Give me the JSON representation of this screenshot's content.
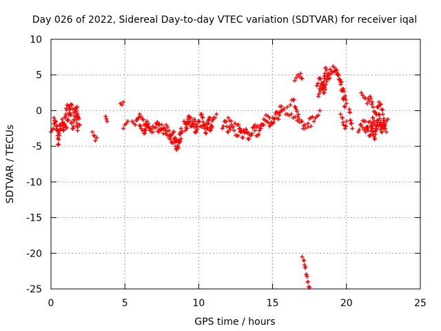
{
  "chart_data": {
    "type": "scatter",
    "title": "Day 026 of 2022, Sidereal Day-to-day VTEC variation (SDTVAR) for receiver iqal",
    "xlabel": "GPS time / hours",
    "ylabel": "SDTVAR / TECUs",
    "xlim": [
      0,
      25
    ],
    "ylim": [
      -25,
      10
    ],
    "xticks": [
      0,
      5,
      10,
      15,
      20,
      25
    ],
    "yticks": [
      -25,
      -20,
      -15,
      -10,
      -5,
      0,
      5,
      10
    ],
    "grid": true,
    "marker": "+",
    "series": [
      {
        "name": "SDTVAR",
        "color": "#ff0000",
        "segments": [
          {
            "x": [
              0.0,
              0.15,
              0.3,
              0.45,
              0.5,
              0.6,
              0.75,
              0.85,
              1.0,
              1.1,
              1.25,
              1.4,
              1.5,
              1.6,
              1.75,
              1.85,
              1.95
            ],
            "y": [
              -3.0,
              -2.5,
              -1.5,
              -3.5,
              -4.8,
              -2.0,
              -1.2,
              -2.8,
              -0.5,
              0.8,
              0.3,
              -1.8,
              -2.5,
              -0.8,
              0.5,
              -1.0,
              -2.0
            ]
          },
          {
            "x": [
              0.2,
              0.35,
              0.55,
              0.7,
              0.9,
              1.05,
              1.2,
              1.35,
              1.55,
              1.7,
              1.8
            ],
            "y": [
              -1.0,
              -2.2,
              -3.2,
              -2.6,
              -1.8,
              -2.4,
              -0.6,
              0.9,
              -0.3,
              0.2,
              -2.8
            ]
          },
          {
            "x": [
              2.8,
              2.9,
              3.0,
              3.1
            ],
            "y": [
              -3.0,
              -3.5,
              -4.2,
              -3.8
            ]
          },
          {
            "x": [
              3.7,
              3.8
            ],
            "y": [
              -0.8,
              -1.5
            ]
          },
          {
            "x": [
              4.7,
              4.8,
              4.9
            ],
            "y": [
              1.0,
              0.8,
              1.2
            ]
          },
          {
            "x": [
              4.9,
              5.0,
              5.1,
              5.2
            ],
            "y": [
              -2.5,
              -2.0,
              -1.8,
              -1.5
            ]
          },
          {
            "x": [
              5.5,
              5.7,
              5.9,
              6.1,
              6.3,
              6.5,
              6.7,
              6.9,
              7.1,
              7.3,
              7.5,
              7.7,
              7.9,
              8.1,
              8.3,
              8.5,
              8.7,
              8.9
            ],
            "y": [
              -1.5,
              -2.0,
              -1.0,
              -2.5,
              -3.2,
              -1.5,
              -2.8,
              -2.2,
              -1.8,
              -3.0,
              -2.0,
              -2.6,
              -3.5,
              -4.0,
              -3.0,
              -5.5,
              -4.5,
              -3.0
            ]
          },
          {
            "x": [
              6.0,
              6.2,
              6.4,
              6.6,
              6.8,
              7.0,
              7.2,
              7.4,
              7.6,
              7.8,
              8.0,
              8.2,
              8.4,
              8.6,
              8.8
            ],
            "y": [
              -0.5,
              -1.2,
              -2.8,
              -2.2,
              -3.0,
              -2.4,
              -1.6,
              -2.6,
              -3.2,
              -2.0,
              -2.8,
              -4.5,
              -3.8,
              -5.0,
              -2.5
            ]
          },
          {
            "x": [
              9.0,
              9.2,
              9.4,
              9.6,
              9.8,
              10.0,
              10.2,
              10.4,
              10.6,
              10.8,
              11.0,
              11.2
            ],
            "y": [
              -1.5,
              -2.5,
              -1.0,
              -2.0,
              -3.0,
              -1.5,
              -0.5,
              -2.5,
              -1.8,
              -2.8,
              -1.0,
              -0.5
            ]
          },
          {
            "x": [
              9.1,
              9.3,
              9.5,
              9.7,
              9.9,
              10.1,
              10.3,
              10.5,
              10.7,
              10.9
            ],
            "y": [
              -2.8,
              -0.8,
              -2.2,
              -1.2,
              -2.6,
              -2.2,
              -1.6,
              -3.2,
              -1.0,
              -2.2
            ]
          },
          {
            "x": [
              11.6,
              11.8,
              12.0,
              12.2,
              12.4,
              12.6,
              12.8,
              13.0,
              13.2,
              13.4,
              13.6,
              13.8,
              14.0,
              14.2,
              14.4,
              14.6,
              14.8,
              15.0,
              15.2,
              15.4,
              15.6
            ],
            "y": [
              -2.5,
              -1.5,
              -3.0,
              -2.0,
              -2.8,
              -3.5,
              -2.5,
              -3.8,
              -3.0,
              -4.0,
              -3.2,
              -2.8,
              -3.5,
              -2.5,
              -2.0,
              -1.5,
              -2.2,
              -1.0,
              -0.5,
              -1.2,
              0.0
            ]
          },
          {
            "x": [
              12.0,
              12.3,
              12.6,
              12.9,
              13.2,
              13.5,
              13.8,
              14.1,
              14.4,
              14.7,
              15.0,
              15.3,
              15.6,
              15.9
            ],
            "y": [
              -1.0,
              -2.2,
              -2.0,
              -3.0,
              -2.6,
              -3.4,
              -2.0,
              -2.8,
              -1.2,
              -0.8,
              -1.8,
              -0.2,
              0.6,
              -0.5
            ]
          },
          {
            "x": [
              16.0,
              16.2,
              16.4,
              16.6,
              16.8,
              17.0,
              17.2,
              17.4,
              17.6,
              17.8,
              18.0,
              18.2
            ],
            "y": [
              0.5,
              0.8,
              1.5,
              0.2,
              -1.2,
              -1.5,
              -2.0,
              -1.8,
              -1.0,
              -1.5,
              -0.8,
              0.0
            ]
          },
          {
            "x": [
              16.0,
              16.4,
              16.8,
              17.2,
              17.6
            ],
            "y": [
              -0.5,
              -1.0,
              -1.6,
              -2.5,
              -2.2
            ]
          },
          {
            "x": [
              16.5,
              16.6,
              16.7,
              16.8,
              16.9,
              17.0
            ],
            "y": [
              4.2,
              4.6,
              5.0,
              4.8,
              5.2,
              4.5
            ]
          },
          {
            "x": [
              17.0,
              17.1,
              17.2,
              17.3,
              17.4,
              17.5
            ],
            "y": [
              -20.5,
              -21.0,
              -22.0,
              -23.0,
              -24.0,
              -24.8
            ]
          },
          {
            "x": [
              18.0,
              18.2,
              18.4,
              18.6,
              18.8,
              19.0,
              19.2,
              19.4,
              19.6,
              19.8,
              20.0
            ],
            "y": [
              3.5,
              4.5,
              3.0,
              6.0,
              4.5,
              5.5,
              6.0,
              5.0,
              4.0,
              3.0,
              1.0
            ]
          },
          {
            "x": [
              18.1,
              18.3,
              18.5,
              18.7,
              18.9,
              19.1,
              19.3,
              19.5,
              19.7,
              19.9
            ],
            "y": [
              2.0,
              3.8,
              2.5,
              4.8,
              5.8,
              6.2,
              5.6,
              4.4,
              2.8,
              0.5
            ]
          },
          {
            "x": [
              19.6,
              19.7,
              19.8,
              19.9,
              20.0
            ],
            "y": [
              -0.5,
              -1.0,
              -2.0,
              -2.5,
              -1.5
            ]
          },
          {
            "x": [
              20.2,
              20.3,
              20.4
            ],
            "y": [
              0.2,
              -1.8,
              -2.5
            ]
          },
          {
            "x": [
              20.8,
              21.0,
              21.2,
              21.4,
              21.6,
              21.8,
              22.0,
              22.2,
              22.4,
              22.6,
              22.8
            ],
            "y": [
              -3.0,
              -2.0,
              -1.5,
              -2.5,
              -3.5,
              -1.0,
              -2.8,
              -0.5,
              -3.0,
              -2.0,
              -1.2
            ]
          },
          {
            "x": [
              21.0,
              21.2,
              21.4,
              21.6,
              21.8,
              22.0,
              22.2,
              22.4,
              22.6
            ],
            "y": [
              2.5,
              1.8,
              1.0,
              2.0,
              0.5,
              -0.5,
              1.2,
              0.2,
              -2.2
            ]
          },
          {
            "x": [
              21.1,
              21.3,
              21.5,
              21.7,
              21.9,
              22.1,
              22.3,
              22.5,
              22.7
            ],
            "y": [
              -2.4,
              -3.0,
              -1.6,
              -2.2,
              -4.0,
              -1.4,
              -2.6,
              -1.8,
              -3.0
            ]
          }
        ]
      }
    ]
  }
}
